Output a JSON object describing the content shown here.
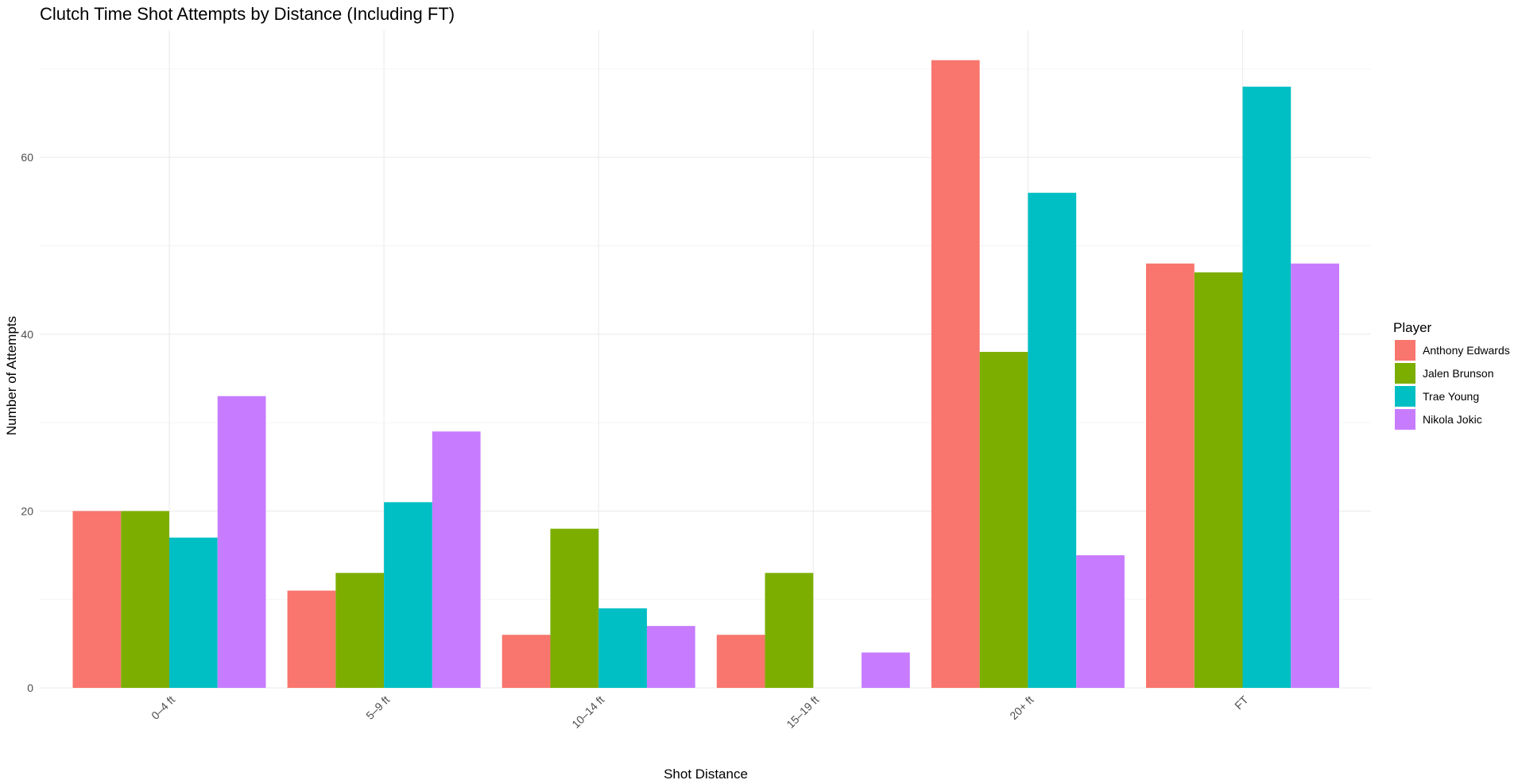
{
  "chart_data": {
    "type": "bar",
    "title": "Clutch Time Shot Attempts by Distance (Including FT)",
    "xlabel": "Shot Distance",
    "ylabel": "Number of Attempts",
    "categories": [
      "0–4 ft",
      "5–9 ft",
      "10–14 ft",
      "15–19 ft",
      "20+ ft",
      "FT"
    ],
    "ylim": [
      0,
      74
    ],
    "yticks": [
      0,
      20,
      40,
      60
    ],
    "grid": true,
    "legend": {
      "title": "Player",
      "placement": "right"
    },
    "series": [
      {
        "name": "Anthony Edwards",
        "color": "#F8766D",
        "values": [
          20,
          11,
          6,
          6,
          71,
          48
        ]
      },
      {
        "name": "Jalen Brunson",
        "color": "#7CAE00",
        "values": [
          20,
          13,
          18,
          13,
          38,
          47
        ]
      },
      {
        "name": "Trae Young",
        "color": "#00BFC4",
        "values": [
          17,
          21,
          9,
          0,
          56,
          68
        ]
      },
      {
        "name": "Nikola Jokic",
        "color": "#C77CFF",
        "values": [
          33,
          29,
          7,
          4,
          15,
          48
        ]
      }
    ]
  }
}
